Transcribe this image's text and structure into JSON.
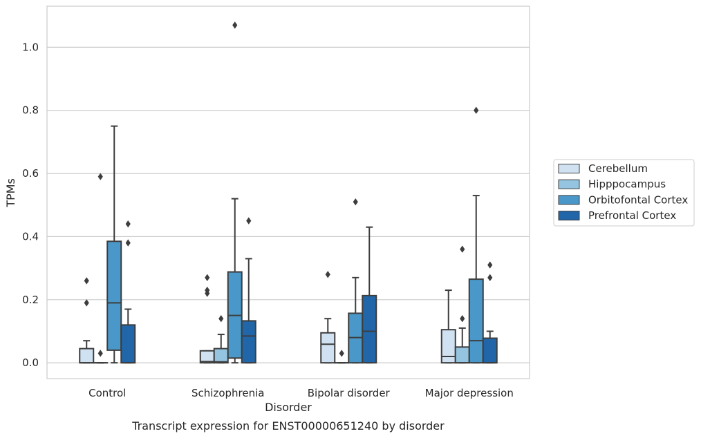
{
  "chart_data": {
    "type": "box",
    "title": "Transcript expression for ENST00000651240 by disorder",
    "xlabel": "Disorder",
    "ylabel": "TPMs",
    "ylim": [
      -0.05,
      1.13
    ],
    "yticks": [
      0.0,
      0.2,
      0.4,
      0.6,
      0.8,
      1.0
    ],
    "ytick_labels": [
      "0.0",
      "0.2",
      "0.4",
      "0.6",
      "0.8",
      "1.0"
    ],
    "grid": true,
    "legend_position": "right",
    "categories": [
      "Control",
      "Schizophrenia",
      "Bipolar disorder",
      "Major depression"
    ],
    "series": [
      {
        "name": "Cerebellum",
        "color": "#d0e1f2",
        "boxes": [
          {
            "whislo": 0.0,
            "q1": 0.0,
            "med": 0.0,
            "q3": 0.045,
            "whishi": 0.07,
            "fliers": [
              0.19,
              0.26
            ]
          },
          {
            "whislo": 0.0,
            "q1": 0.0,
            "med": 0.004,
            "q3": 0.038,
            "whishi": 0.038,
            "fliers": [
              0.22,
              0.23,
              0.27
            ]
          },
          {
            "whislo": 0.0,
            "q1": 0.0,
            "med": 0.059,
            "q3": 0.095,
            "whishi": 0.14,
            "fliers": [
              0.28
            ]
          },
          {
            "whislo": 0.0,
            "q1": 0.0,
            "med": 0.02,
            "q3": 0.105,
            "whishi": 0.23,
            "fliers": []
          }
        ]
      },
      {
        "name": "Hipppocampus",
        "color": "#94c4df",
        "boxes": [
          {
            "whislo": 0.0,
            "q1": 0.0,
            "med": 0.0,
            "q3": 0.0,
            "whishi": 0.0,
            "fliers": [
              0.03,
              0.59
            ]
          },
          {
            "whislo": 0.0,
            "q1": 0.0,
            "med": 0.003,
            "q3": 0.045,
            "whishi": 0.09,
            "fliers": [
              0.14
            ]
          },
          {
            "whislo": 0.0,
            "q1": 0.0,
            "med": 0.0,
            "q3": 0.0,
            "whishi": 0.0,
            "fliers": [
              0.03
            ]
          },
          {
            "whislo": 0.0,
            "q1": 0.0,
            "med": 0.0,
            "q3": 0.05,
            "whishi": 0.11,
            "fliers": [
              0.14,
              0.36
            ]
          }
        ]
      },
      {
        "name": "Orbitofontal Cortex",
        "color": "#4a98c9",
        "boxes": [
          {
            "whislo": 0.0,
            "q1": 0.04,
            "med": 0.19,
            "q3": 0.385,
            "whishi": 0.75,
            "fliers": []
          },
          {
            "whislo": 0.0,
            "q1": 0.015,
            "med": 0.15,
            "q3": 0.288,
            "whishi": 0.52,
            "fliers": [
              1.07
            ]
          },
          {
            "whislo": 0.0,
            "q1": 0.0,
            "med": 0.08,
            "q3": 0.157,
            "whishi": 0.27,
            "fliers": [
              0.51
            ]
          },
          {
            "whislo": 0.0,
            "q1": 0.0,
            "med": 0.07,
            "q3": 0.265,
            "whishi": 0.53,
            "fliers": [
              0.8
            ]
          }
        ]
      },
      {
        "name": "Prefrontal Cortex",
        "color": "#2166a8",
        "boxes": [
          {
            "whislo": 0.0,
            "q1": 0.0,
            "med": 0.0,
            "q3": 0.12,
            "whishi": 0.17,
            "fliers": [
              0.38,
              0.44
            ]
          },
          {
            "whislo": 0.0,
            "q1": 0.0,
            "med": 0.085,
            "q3": 0.133,
            "whishi": 0.33,
            "fliers": [
              0.45
            ]
          },
          {
            "whislo": 0.0,
            "q1": 0.0,
            "med": 0.1,
            "q3": 0.213,
            "whishi": 0.43,
            "fliers": []
          },
          {
            "whislo": 0.0,
            "q1": 0.0,
            "med": 0.0,
            "q3": 0.078,
            "whishi": 0.1,
            "fliers": [
              0.27,
              0.31
            ]
          }
        ]
      }
    ]
  }
}
